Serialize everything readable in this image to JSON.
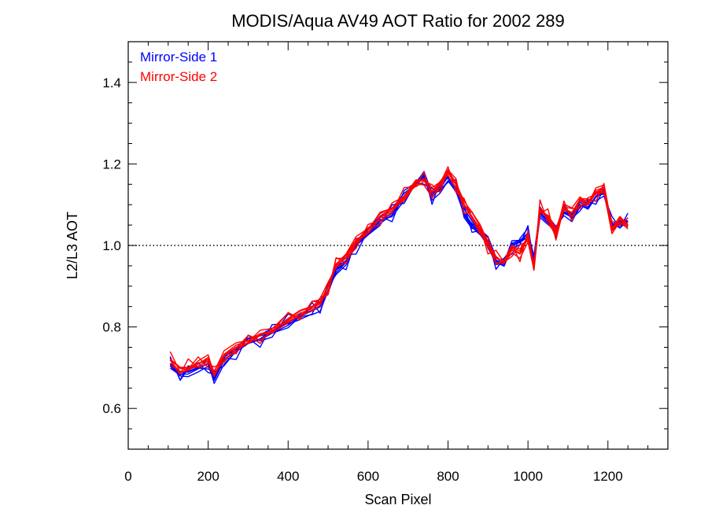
{
  "chart_data": {
    "type": "line",
    "title": "MODIS/Aqua AV49 AOT Ratio for 2002 289",
    "xlabel": "Scan Pixel",
    "ylabel": "L2/L3 AOT",
    "xlim": [
      0,
      1350
    ],
    "ylim": [
      0.5,
      1.5
    ],
    "x_ticks": [
      0,
      200,
      400,
      600,
      800,
      1000,
      1200
    ],
    "x_tick_labels": [
      "0",
      "200",
      "400",
      "600",
      "800",
      "1000",
      "1200"
    ],
    "y_ticks": [
      0.6,
      0.8,
      1.0,
      1.2,
      1.4
    ],
    "y_tick_labels": [
      "0.6",
      "0.8",
      "1.0",
      "1.2",
      "1.4"
    ],
    "reference_line": {
      "y": 1.0,
      "style": "dotted"
    },
    "legend": {
      "position": "top-left"
    },
    "x": [
      105,
      130,
      150,
      175,
      200,
      215,
      240,
      270,
      300,
      330,
      360,
      400,
      430,
      460,
      480,
      500,
      520,
      545,
      570,
      600,
      630,
      660,
      690,
      720,
      740,
      760,
      780,
      800,
      820,
      840,
      860,
      880,
      900,
      920,
      940,
      960,
      980,
      1000,
      1015,
      1030,
      1050,
      1070,
      1090,
      1110,
      1130,
      1150,
      1170,
      1190,
      1210,
      1230,
      1250
    ],
    "series": [
      {
        "name": "Mirror-Side 1",
        "color": "#0000ff",
        "values": [
          0.71,
          0.69,
          0.69,
          0.7,
          0.71,
          0.67,
          0.72,
          0.74,
          0.76,
          0.77,
          0.79,
          0.81,
          0.83,
          0.84,
          0.85,
          0.9,
          0.94,
          0.96,
          1.0,
          1.03,
          1.06,
          1.08,
          1.12,
          1.15,
          1.17,
          1.12,
          1.14,
          1.17,
          1.14,
          1.08,
          1.05,
          1.03,
          1.01,
          0.96,
          0.95,
          1.0,
          1.01,
          1.03,
          0.97,
          1.08,
          1.06,
          1.04,
          1.08,
          1.07,
          1.1,
          1.09,
          1.12,
          1.13,
          1.05,
          1.06,
          1.06
        ]
      },
      {
        "name": "Mirror-Side 2",
        "color": "#ff0000",
        "values": [
          0.72,
          0.7,
          0.7,
          0.71,
          0.72,
          0.68,
          0.73,
          0.75,
          0.76,
          0.78,
          0.79,
          0.82,
          0.84,
          0.85,
          0.86,
          0.9,
          0.95,
          0.97,
          1.01,
          1.03,
          1.07,
          1.09,
          1.12,
          1.16,
          1.16,
          1.13,
          1.15,
          1.18,
          1.15,
          1.1,
          1.07,
          1.04,
          1.0,
          0.97,
          0.96,
          0.99,
          0.98,
          1.02,
          0.95,
          1.09,
          1.07,
          1.03,
          1.09,
          1.08,
          1.11,
          1.1,
          1.13,
          1.14,
          1.04,
          1.07,
          1.05
        ]
      }
    ]
  }
}
